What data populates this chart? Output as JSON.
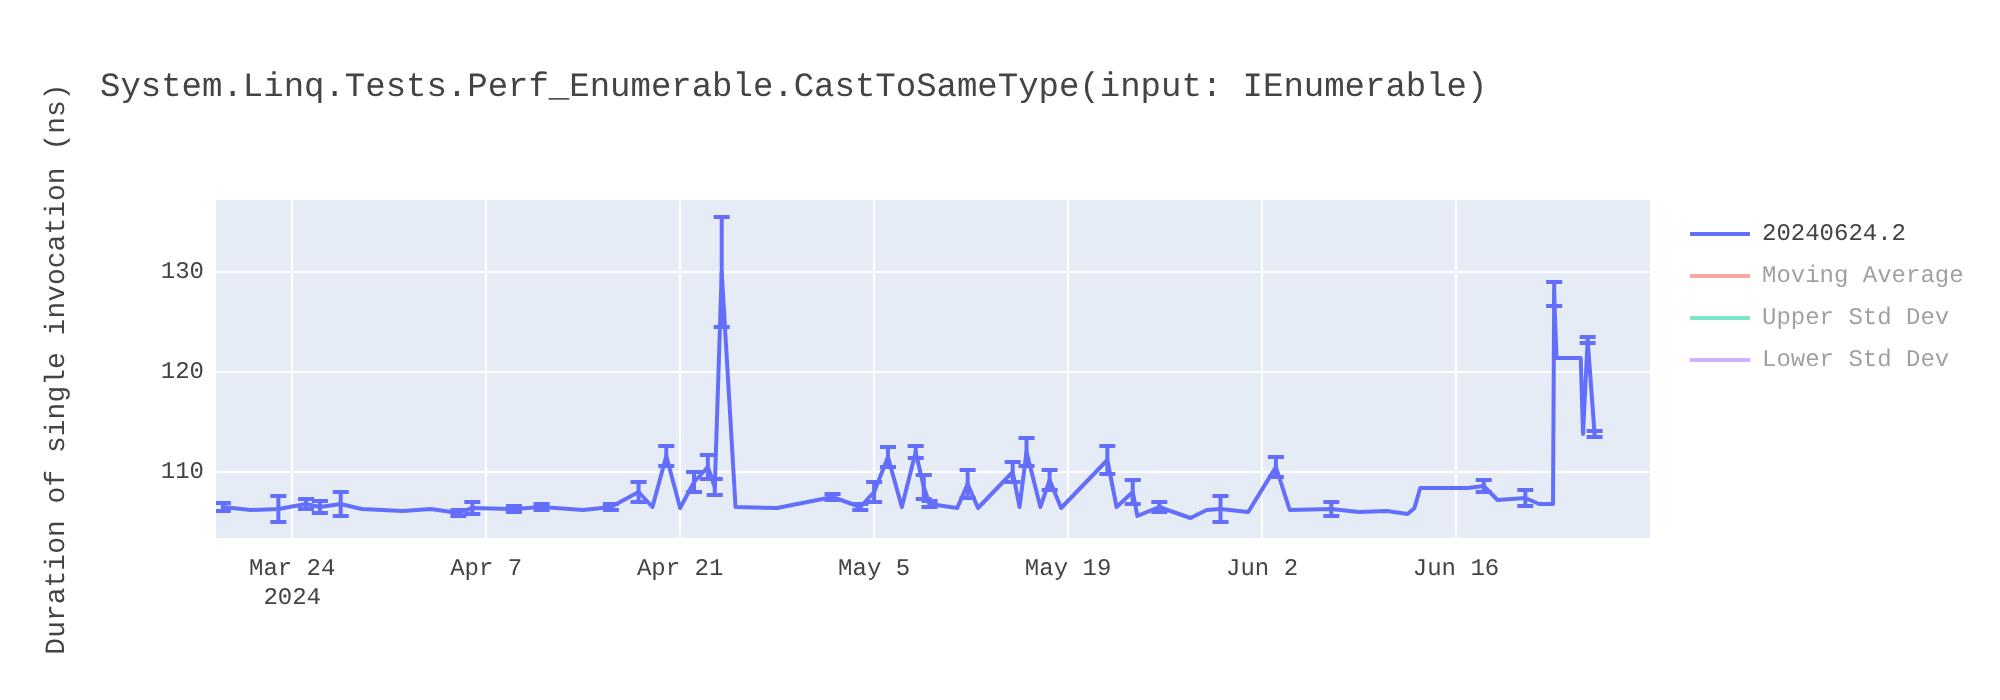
{
  "chart_data": {
    "type": "line",
    "title": "System.Linq.Tests.Perf_Enumerable.CastToSameType(input: IEnumerable)",
    "ylabel": "Duration of single invocation (ns)",
    "x": [
      "2024-03-19",
      "2024-03-21",
      "2024-03-23",
      "2024-03-25",
      "2024-03-26",
      "2024-03-27T12:00",
      "2024-03-29",
      "2024-04-01",
      "2024-04-03",
      "2024-04-05",
      "2024-04-06",
      "2024-04-09",
      "2024-04-11",
      "2024-04-14",
      "2024-04-16",
      "2024-04-18",
      "2024-04-19",
      "2024-04-20",
      "2024-04-21",
      "2024-04-22",
      "2024-04-23",
      "2024-04-23T12:00",
      "2024-04-24",
      "2024-04-25",
      "2024-04-28",
      "2024-05-02",
      "2024-05-04",
      "2024-05-05",
      "2024-05-06",
      "2024-05-07",
      "2024-05-08",
      "2024-05-08T14:00",
      "2024-05-09",
      "2024-05-11",
      "2024-05-11T18:00",
      "2024-05-12T12:00",
      "2024-05-15",
      "2024-05-15T12:00",
      "2024-05-16",
      "2024-05-17",
      "2024-05-17T16:00",
      "2024-05-18T12:00",
      "2024-05-21T20:00",
      "2024-05-22T12:00",
      "2024-05-23T16:00",
      "2024-05-24",
      "2024-05-25T14:00",
      "2024-05-27T20:00",
      "2024-05-29",
      "2024-05-30",
      "2024-06-01",
      "2024-06-03",
      "2024-06-04",
      "2024-06-07",
      "2024-06-09",
      "2024-06-11",
      "2024-06-12T12:00",
      "2024-06-13",
      "2024-06-13T10:00",
      "2024-06-16T20:00",
      "2024-06-18",
      "2024-06-19",
      "2024-06-21",
      "2024-06-22",
      "2024-06-23",
      "2024-06-23T02:00",
      "2024-06-23T06:00",
      "2024-06-25",
      "2024-06-25T04:00",
      "2024-06-25T12:00",
      "2024-06-26"
    ],
    "series": [
      {
        "name": "20240624.2",
        "color": "#636efa",
        "values": [
          106.5,
          106.2,
          106.3,
          106.8,
          106.5,
          106.8,
          106.3,
          106.1,
          106.3,
          105.9,
          106.4,
          106.3,
          106.5,
          106.2,
          106.5,
          108,
          106.5,
          111.6,
          106.4,
          109,
          110.5,
          108.5,
          130,
          106.5,
          106.4,
          107.5,
          106.5,
          108,
          111.5,
          106.5,
          112,
          108.5,
          106.8,
          106.4,
          108.8,
          106.4,
          110,
          106.5,
          112,
          106.5,
          109.2,
          106.4,
          111.2,
          106.5,
          108,
          105.6,
          106.5,
          105.4,
          106.2,
          106.3,
          106,
          110.5,
          106.2,
          106.3,
          106,
          106.1,
          105.8,
          106.4,
          108.4,
          108.4,
          108.6,
          107.2,
          107.4,
          106.8,
          106.8,
          127.8,
          121.4,
          121.4,
          113.8,
          123.2,
          113.8
        ],
        "errors": [
          0.4,
          null,
          1.3,
          0.5,
          0.6,
          1.2,
          null,
          null,
          null,
          0.3,
          0.6,
          0.3,
          0.3,
          null,
          0.3,
          1,
          null,
          1,
          null,
          1,
          1.2,
          0.8,
          5.5,
          null,
          null,
          0.3,
          0.3,
          1,
          1,
          null,
          0.6,
          1.2,
          0.3,
          null,
          1.4,
          null,
          1,
          null,
          1.4,
          null,
          1,
          null,
          1.4,
          null,
          1.2,
          null,
          0.5,
          null,
          null,
          1.3,
          null,
          1,
          null,
          0.7,
          null,
          null,
          null,
          null,
          null,
          null,
          0.6,
          null,
          0.8,
          null,
          null,
          1.2,
          null,
          null,
          null,
          0.3,
          0.3
        ]
      },
      {
        "name": "Moving Average",
        "color": "#ef553b",
        "values": [
          null,
          null,
          null,
          null,
          null,
          null,
          null,
          null,
          null,
          null,
          null,
          null,
          null,
          null,
          null,
          null,
          null,
          null,
          null,
          null,
          null,
          null,
          null,
          null,
          null,
          null,
          null,
          null,
          null,
          null,
          null,
          null,
          null,
          null,
          null,
          null,
          null,
          null,
          null,
          null,
          null,
          null,
          null,
          null,
          null,
          null,
          null,
          null,
          null,
          null,
          null,
          null,
          null,
          null,
          null,
          null,
          null,
          null,
          null,
          null,
          null,
          null,
          null,
          null,
          null,
          null,
          null,
          null,
          null,
          null,
          null
        ]
      },
      {
        "name": "Upper Std Dev",
        "color": "#00cc96",
        "values": [
          null,
          null,
          null,
          null,
          null,
          null,
          null,
          null,
          null,
          null,
          null,
          null,
          null,
          null,
          null,
          null,
          null,
          null,
          null,
          null,
          null,
          null,
          null,
          null,
          null,
          null,
          null,
          null,
          null,
          null,
          null,
          null,
          null,
          null,
          null,
          null,
          null,
          null,
          null,
          null,
          null,
          null,
          null,
          null,
          null,
          null,
          null,
          null,
          null,
          null,
          null,
          null,
          null,
          null,
          null,
          null,
          null,
          null,
          null,
          null,
          null,
          null,
          null,
          null,
          null,
          null,
          null,
          null,
          null,
          null,
          null
        ]
      },
      {
        "name": "Lower Std Dev",
        "color": "#ab63fa",
        "values": [
          null,
          null,
          null,
          null,
          null,
          null,
          null,
          null,
          null,
          null,
          null,
          null,
          null,
          null,
          null,
          null,
          null,
          null,
          null,
          null,
          null,
          null,
          null,
          null,
          null,
          null,
          null,
          null,
          null,
          null,
          null,
          null,
          null,
          null,
          null,
          null,
          null,
          null,
          null,
          null,
          null,
          null,
          null,
          null,
          null,
          null,
          null,
          null,
          null,
          null,
          null,
          null,
          null,
          null,
          null,
          null,
          null,
          null,
          null,
          null,
          null,
          null,
          null,
          null,
          null,
          null,
          null,
          null,
          null,
          null,
          null
        ]
      }
    ],
    "xlim": [
      "2024-03-18T12:00",
      "2024-06-30"
    ],
    "xticks": [
      {
        "value": "2024-03-24",
        "label": "Mar 24\n2024"
      },
      {
        "value": "2024-04-07",
        "label": "Apr 7"
      },
      {
        "value": "2024-04-21",
        "label": "Apr 21"
      },
      {
        "value": "2024-05-05",
        "label": "May 5"
      },
      {
        "value": "2024-05-19",
        "label": "May 19"
      },
      {
        "value": "2024-06-02",
        "label": "Jun 2"
      },
      {
        "value": "2024-06-16",
        "label": "Jun 16"
      }
    ],
    "ylim": [
      103.4,
      137.2
    ],
    "yticks": [
      110,
      120,
      130
    ],
    "grid": true,
    "legend": "top right",
    "line_style": "solid"
  }
}
